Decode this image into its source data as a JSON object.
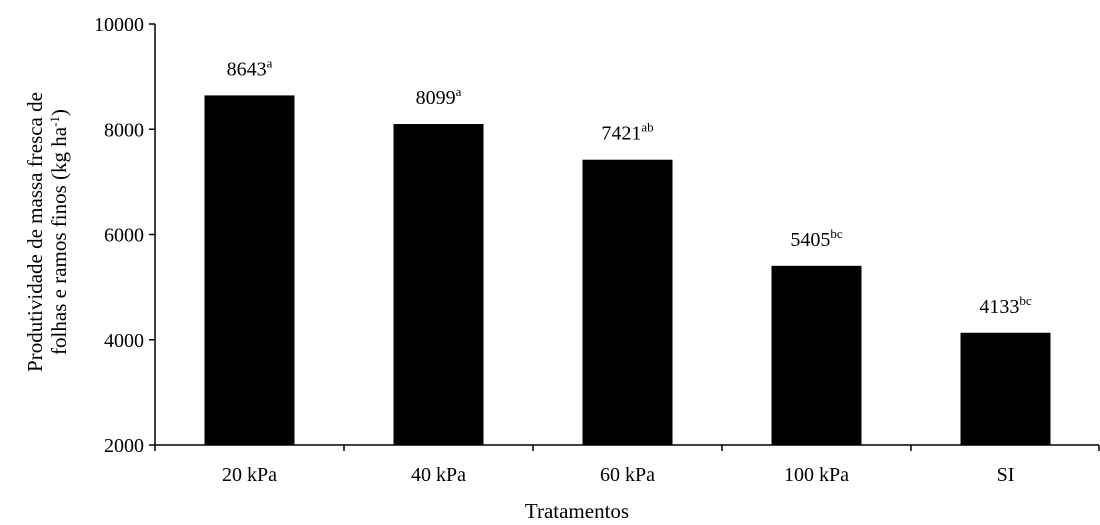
{
  "chart_data": {
    "type": "bar",
    "categories": [
      "20 kPa",
      "40 kPa",
      "60 kPa",
      "100 kPa",
      "SI"
    ],
    "values": [
      8643,
      8099,
      7421,
      5405,
      4133
    ],
    "value_labels": [
      "8643",
      "8099",
      "7421",
      "5405",
      "4133"
    ],
    "significance_letters": [
      "a",
      "a",
      "ab",
      "bc",
      "bc"
    ],
    "title": "",
    "xlabel": "Tratamentos",
    "ylabel_line1": "Produtividade de massa fresca de",
    "ylabel_line2_prefix": "folhas e ramos finos (kg ha",
    "ylabel_line2_superscript": "-1",
    "ylabel_line2_suffix": ")",
    "ylim": [
      2000,
      10000
    ],
    "yticks": [
      2000,
      4000,
      6000,
      8000,
      10000
    ],
    "ytick_labels": [
      "2000",
      "4000",
      "6000",
      "8000",
      "10000"
    ],
    "grid": false,
    "bar_color": "#000000",
    "axis_color": "#000000"
  }
}
